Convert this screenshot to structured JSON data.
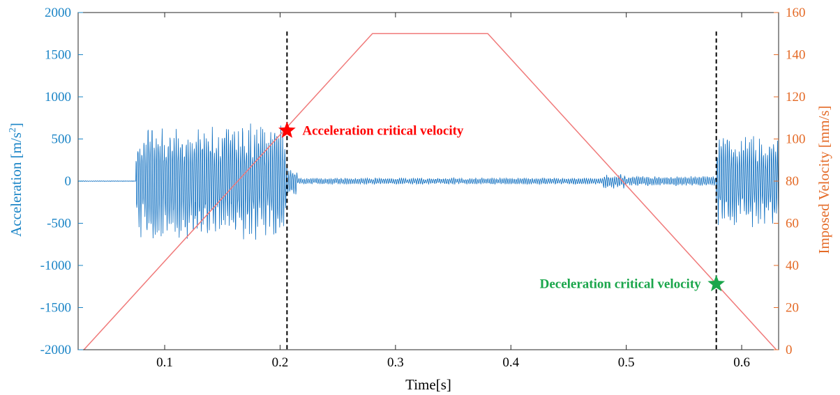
{
  "chart_data": {
    "type": "line",
    "xlabel": "Time[s]",
    "ylabel_left": "Acceleration [m/s2]",
    "ylabel_left_base": "Acceleration [m/s",
    "ylabel_left_sup": "2",
    "ylabel_left_tail": "]",
    "ylabel_right": "Imposed Velocity [mm/s]",
    "xlim": [
      0.025,
      0.632
    ],
    "ylim_left": [
      -2000,
      2000
    ],
    "ylim_right": [
      0,
      160
    ],
    "xticks": [
      0.1,
      0.2,
      0.3,
      0.4,
      0.5,
      0.6
    ],
    "xtick_labels": [
      "0.1",
      "0.2",
      "0.3",
      "0.4",
      "0.5",
      "0.6"
    ],
    "yticks_left": [
      -2000,
      -1500,
      -1000,
      -500,
      0,
      500,
      1000,
      1500,
      2000
    ],
    "ytick_labels_left": [
      "-2000",
      "-1500",
      "-1000",
      "-500",
      "0",
      "500",
      "1000",
      "1500",
      "2000"
    ],
    "yticks_right": [
      0,
      20,
      40,
      60,
      80,
      100,
      120,
      140,
      160
    ],
    "ytick_labels_right": [
      "0",
      "20",
      "40",
      "60",
      "80",
      "100",
      "120",
      "140",
      "160"
    ],
    "grid": false,
    "colors": {
      "acceleration": "#0a6cbf",
      "velocity": "#f07a7a",
      "left_axis": "#1a84c6",
      "right_axis": "#e46a26",
      "accel_marker": "#ff0000",
      "decel_marker": "#1aa64b",
      "critical_line": "#000000"
    },
    "series": [
      {
        "axis": "right",
        "x": [
          0.03,
          0.28,
          0.38,
          0.63
        ],
        "values": [
          0,
          150,
          150,
          0
        ]
      },
      {
        "axis": "left",
        "kind": "vibration_envelope",
        "segments": [
          {
            "x_start": 0.025,
            "x_end": 0.075,
            "amplitude": 5
          },
          {
            "x_start": 0.075,
            "x_end": 0.205,
            "amplitude": 700
          },
          {
            "x_start": 0.205,
            "x_end": 0.215,
            "amplitude": 200
          },
          {
            "x_start": 0.215,
            "x_end": 0.48,
            "amplitude": 40
          },
          {
            "x_start": 0.48,
            "x_end": 0.5,
            "amplitude": 90
          },
          {
            "x_start": 0.5,
            "x_end": 0.578,
            "amplitude": 60
          },
          {
            "x_start": 0.578,
            "x_end": 0.632,
            "amplitude": 560
          }
        ]
      }
    ],
    "critical_lines_x": [
      0.206,
      0.578
    ],
    "annotations": [
      {
        "text": "Acceleration critical velocity",
        "x": 0.206,
        "y_left": 600,
        "marker": "star",
        "color": "#ff0000",
        "label_side": "right"
      },
      {
        "text": "Deceleration critical velocity",
        "x": 0.578,
        "y_left": -1220,
        "marker": "star",
        "color": "#1aa64b",
        "label_side": "left"
      }
    ]
  }
}
